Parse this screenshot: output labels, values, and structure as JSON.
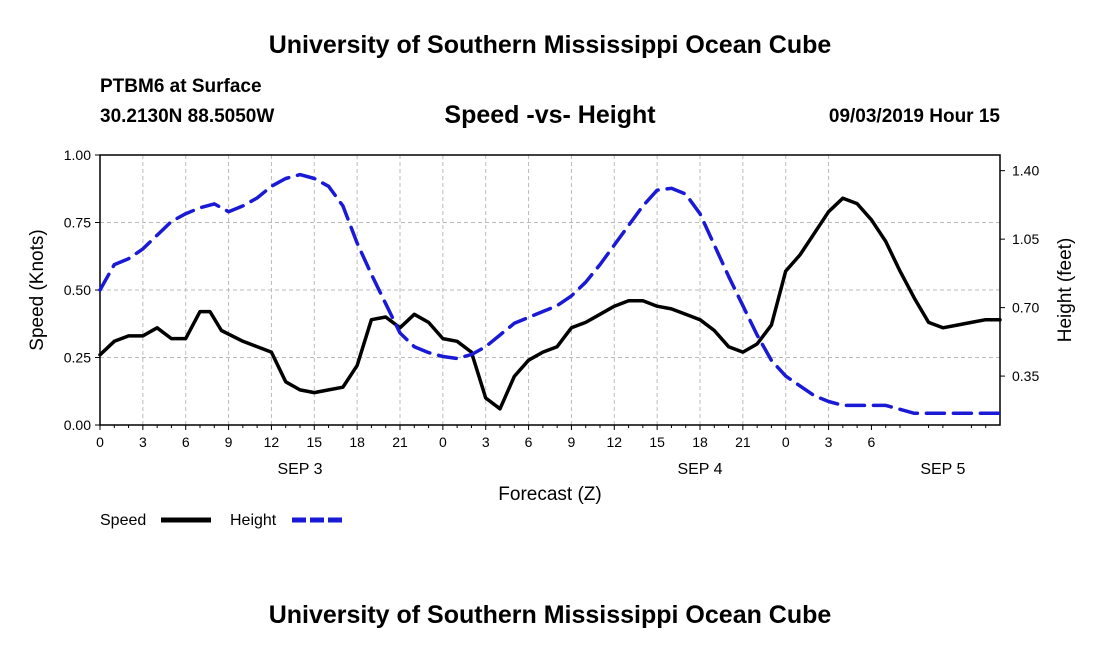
{
  "page": {
    "title_top": "University of Southern Mississippi Ocean Cube",
    "title_bottom": "University of Southern Mississippi Ocean Cube",
    "station": "PTBM6 at Surface",
    "coords": "30.2130N 88.5050W",
    "datetime": "09/03/2019 Hour 15"
  },
  "chart_data": {
    "type": "line",
    "title": "Speed -vs- Height",
    "xlabel": "Forecast (Z)",
    "ylabel": "Speed (Knots)",
    "ylabel_right": "Height (feet)",
    "x_range_hours": [
      0,
      63
    ],
    "ylim": [
      0,
      1
    ],
    "ylim_right": [
      0.1,
      1.48
    ],
    "grid": true,
    "legend_position": "bottom-left",
    "x_tick_labels": [
      "0",
      "3",
      "6",
      "9",
      "12",
      "15",
      "18",
      "21",
      "0",
      "3",
      "6",
      "9",
      "12",
      "15",
      "18",
      "21",
      "0",
      "3",
      "6"
    ],
    "day_labels": [
      {
        "label": "SEP 3",
        "hour": 14
      },
      {
        "label": "SEP 4",
        "hour": 42
      },
      {
        "label": "SEP 5",
        "hour": 59
      }
    ],
    "y_ticks_left": [
      "0.00",
      "0.25",
      "0.50",
      "0.75",
      "1.00"
    ],
    "y_ticks_right": [
      "0.35",
      "0.70",
      "1.05",
      "1.40"
    ],
    "colors": {
      "speed": "#000000",
      "height": "#1a1ad6",
      "grid": "#bbbbbb"
    },
    "series": [
      {
        "name": "Speed",
        "axis": "left",
        "style": "solid",
        "x": [
          0,
          1,
          2,
          3,
          4,
          5,
          6,
          7,
          7.7,
          8.5,
          10,
          12,
          13,
          14,
          15,
          16,
          17,
          18,
          19,
          20,
          21,
          22,
          23,
          24,
          25,
          26,
          27,
          28,
          29,
          30,
          31,
          32,
          33,
          34,
          35,
          36,
          37,
          38,
          39,
          40,
          41,
          42,
          43,
          44,
          45,
          46,
          47,
          48,
          49,
          50,
          51,
          52,
          53,
          54,
          55,
          56,
          57,
          58,
          59,
          60,
          61,
          62,
          63
        ],
        "values": [
          0.26,
          0.31,
          0.33,
          0.33,
          0.36,
          0.32,
          0.32,
          0.42,
          0.42,
          0.35,
          0.31,
          0.27,
          0.16,
          0.13,
          0.12,
          0.13,
          0.14,
          0.22,
          0.39,
          0.4,
          0.36,
          0.41,
          0.38,
          0.32,
          0.31,
          0.27,
          0.1,
          0.06,
          0.18,
          0.24,
          0.27,
          0.29,
          0.36,
          0.38,
          0.41,
          0.44,
          0.46,
          0.46,
          0.44,
          0.43,
          0.41,
          0.39,
          0.35,
          0.29,
          0.27,
          0.3,
          0.37,
          0.57,
          0.63,
          0.71,
          0.79,
          0.84,
          0.82,
          0.76,
          0.68,
          0.57,
          0.47,
          0.38,
          0.36,
          0.37,
          0.38,
          0.39,
          0.39
        ]
      },
      {
        "name": "Height",
        "axis": "right",
        "style": "dashed",
        "x": [
          0,
          1,
          2,
          3,
          4,
          5,
          6,
          7,
          8,
          9,
          10,
          11,
          12,
          13,
          14,
          15,
          16,
          17,
          18,
          19,
          20,
          21,
          22,
          23,
          24,
          25,
          26,
          27,
          28,
          29,
          30,
          31,
          32,
          33,
          34,
          35,
          36,
          37,
          38,
          39,
          40,
          41,
          42,
          43,
          44,
          45,
          46,
          47,
          48,
          49,
          50,
          51,
          52,
          53,
          54,
          55,
          56,
          57,
          58,
          59,
          60,
          61,
          62,
          63
        ],
        "values": [
          0.79,
          0.92,
          0.95,
          1.0,
          1.07,
          1.14,
          1.18,
          1.21,
          1.23,
          1.19,
          1.22,
          1.26,
          1.32,
          1.36,
          1.38,
          1.36,
          1.32,
          1.22,
          1.03,
          0.87,
          0.72,
          0.57,
          0.5,
          0.47,
          0.45,
          0.44,
          0.46,
          0.5,
          0.56,
          0.62,
          0.65,
          0.68,
          0.71,
          0.76,
          0.83,
          0.92,
          1.02,
          1.12,
          1.22,
          1.3,
          1.31,
          1.28,
          1.18,
          1.02,
          0.86,
          0.71,
          0.56,
          0.43,
          0.35,
          0.3,
          0.25,
          0.22,
          0.2,
          0.2,
          0.2,
          0.2,
          0.18,
          0.16,
          0.16,
          0.16,
          0.16,
          0.16,
          0.16,
          0.16
        ]
      }
    ]
  },
  "legend": {
    "speed_label": "Speed",
    "height_label": "Height"
  }
}
